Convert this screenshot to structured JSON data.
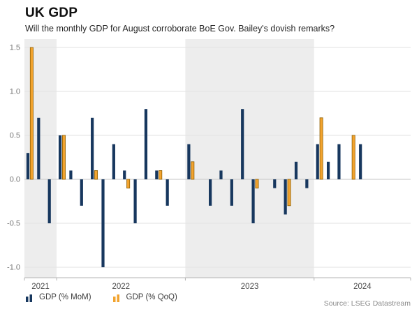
{
  "header": {
    "title": "UK GDP",
    "subtitle": "Will the monthly GDP for August corroborate BoE Gov. Bailey's dovish remarks?"
  },
  "source": "Source: LSEG Datastream",
  "legend": [
    {
      "label": "GDP (% MoM)",
      "color": "#17375E"
    },
    {
      "label": "GDP (% QoQ)",
      "color": "#F2A32E"
    }
  ],
  "chart_data": {
    "type": "bar",
    "title": "UK GDP",
    "xlabel": "",
    "ylabel": "%",
    "grid": true,
    "legend_position": "bottom-left",
    "band_color": "#EDEDED",
    "y_ticks": [
      -1.0,
      -0.5,
      0.0,
      0.5,
      1.0,
      1.5
    ],
    "ylim": [
      -1.15,
      1.6
    ],
    "categories": [
      "2021-10",
      "2021-11",
      "2021-12",
      "2022-01",
      "2022-02",
      "2022-03",
      "2022-04",
      "2022-05",
      "2022-06",
      "2022-07",
      "2022-08",
      "2022-09",
      "2022-10",
      "2022-11",
      "2022-12",
      "2023-01",
      "2023-02",
      "2023-03",
      "2023-04",
      "2023-05",
      "2023-06",
      "2023-07",
      "2023-08",
      "2023-09",
      "2023-10",
      "2023-11",
      "2023-12",
      "2024-01",
      "2024-02",
      "2024-03",
      "2024-04",
      "2024-05",
      "2024-06",
      "2024-07",
      "2024-08",
      "2024-09"
    ],
    "series": [
      {
        "name": "GDP (% MoM)",
        "color": "#17375E",
        "values": [
          0.3,
          0.7,
          -0.5,
          0.5,
          0.1,
          -0.3,
          0.7,
          -1.0,
          0.4,
          0.1,
          -0.5,
          0.8,
          0.1,
          -0.3,
          0.0,
          0.4,
          0.0,
          -0.3,
          0.1,
          -0.3,
          0.8,
          -0.5,
          0.0,
          -0.1,
          -0.4,
          0.2,
          -0.1,
          0.4,
          0.2,
          0.4,
          0.0,
          0.4,
          0.0,
          0.0,
          null,
          null
        ]
      },
      {
        "name": "GDP (% QoQ)",
        "color": "#F2A32E",
        "stroke": "#8F5F00",
        "values": [
          1.5,
          null,
          null,
          0.5,
          null,
          null,
          0.1,
          null,
          null,
          -0.1,
          null,
          null,
          0.1,
          null,
          null,
          0.2,
          null,
          null,
          0.0,
          null,
          null,
          -0.1,
          null,
          null,
          -0.3,
          null,
          null,
          0.7,
          null,
          null,
          0.5,
          null,
          null,
          null,
          null,
          null
        ]
      }
    ],
    "year_bands": [
      {
        "year": "2021",
        "months": 3,
        "shaded": true
      },
      {
        "year": "2022",
        "months": 12,
        "shaded": false
      },
      {
        "year": "2023",
        "months": 12,
        "shaded": true
      },
      {
        "year": "2024",
        "months": 9,
        "shaded": false
      }
    ]
  }
}
